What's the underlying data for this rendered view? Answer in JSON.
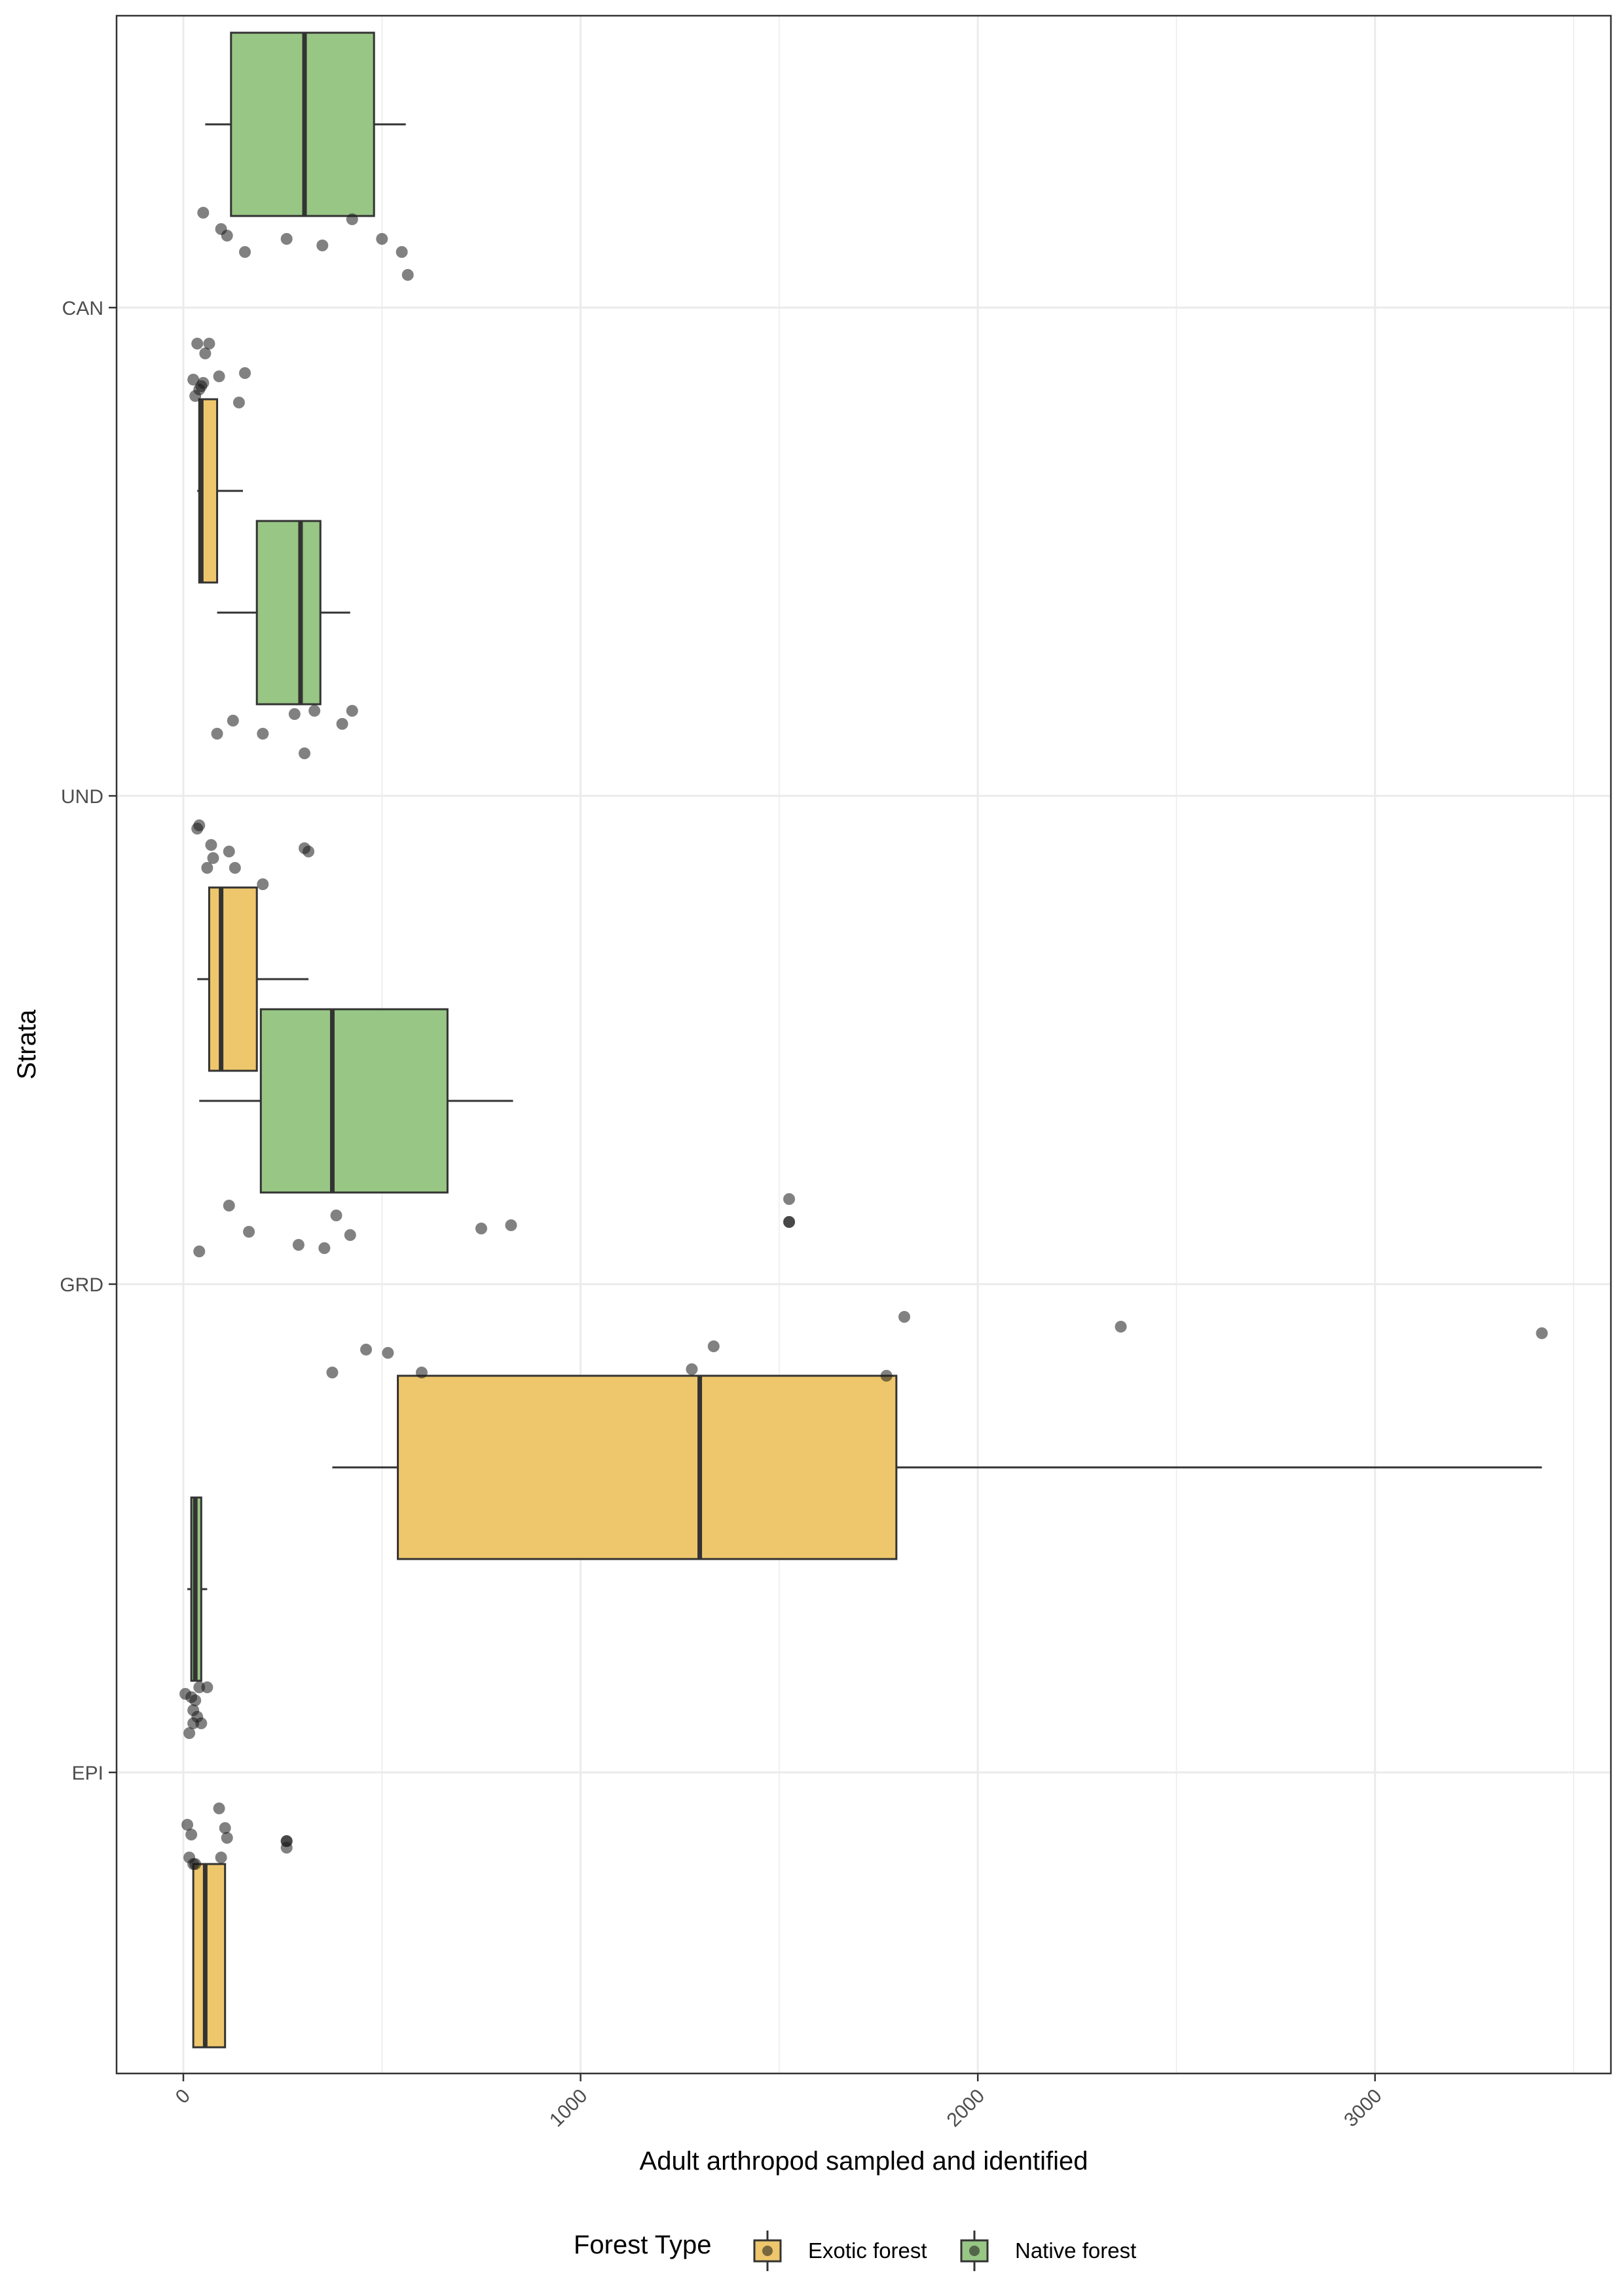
{
  "chart_data": {
    "type": "boxplot",
    "orientation": "horizontal",
    "xlabel": "Adult arthropod sampled and identified",
    "ylabel": "Strata",
    "xlim": [
      -170,
      3570
    ],
    "x_ticks": [
      0,
      1000,
      2000,
      3000
    ],
    "x_tick_labels": [
      "0",
      "1000",
      "2000",
      "3000"
    ],
    "x_tick_label_rotation": -45,
    "categories": [
      "CAN",
      "UND",
      "GRD",
      "EPI"
    ],
    "grid": true,
    "legend": {
      "title": "Forest Type",
      "position": "bottom",
      "entries": [
        "Exotic forest",
        "Native forest"
      ]
    },
    "colors": {
      "Exotic forest": "#EEC76C",
      "Native forest": "#98C685",
      "outline": "#333333",
      "grid": "#EBEBEB",
      "panel_border": "#333333",
      "points": "#1a1a1a"
    },
    "series": [
      {
        "name": "Native forest",
        "boxes": {
          "CAN": {
            "whisker_low": 55,
            "q1": 120,
            "median": 305,
            "q3": 480,
            "whisker_high": 560
          },
          "UND": {
            "whisker_low": 85,
            "q1": 185,
            "median": 295,
            "q3": 345,
            "whisker_high": 420
          },
          "GRD": {
            "whisker_low": 40,
            "q1": 195,
            "median": 375,
            "q3": 665,
            "whisker_high": 830
          },
          "EPI": {
            "whisker_low": 10,
            "q1": 20,
            "median": 30,
            "q3": 45,
            "whisker_high": 60
          }
        },
        "points": {
          "CAN": [
            [
              50,
              0.29
            ],
            [
              95,
              0.24
            ],
            [
              110,
              0.22
            ],
            [
              155,
              0.17
            ],
            [
              260,
              0.21
            ],
            [
              350,
              0.19
            ],
            [
              425,
              0.27
            ],
            [
              500,
              0.21
            ],
            [
              550,
              0.17
            ],
            [
              565,
              0.1
            ]
          ],
          "UND": [
            [
              85,
              0.19
            ],
            [
              125,
              0.23
            ],
            [
              200,
              0.19
            ],
            [
              280,
              0.25
            ],
            [
              305,
              0.13
            ],
            [
              330,
              0.26
            ],
            [
              400,
              0.22
            ],
            [
              425,
              0.26
            ]
          ],
          "GRD": [
            [
              40,
              0.1
            ],
            [
              115,
              0.24
            ],
            [
              165,
              0.16
            ],
            [
              290,
              0.12
            ],
            [
              355,
              0.11
            ],
            [
              385,
              0.21
            ],
            [
              420,
              0.15
            ],
            [
              750,
              0.17
            ],
            [
              825,
              0.18
            ],
            [
              1525,
              0.26
            ],
            [
              1525,
              0.19
            ],
            [
              1525,
              0.19
            ]
          ],
          "EPI": [
            [
              5,
              0.24
            ],
            [
              15,
              0.12
            ],
            [
              20,
              0.23
            ],
            [
              25,
              0.19
            ],
            [
              25,
              0.15
            ],
            [
              30,
              0.22
            ],
            [
              35,
              0.17
            ],
            [
              40,
              0.26
            ],
            [
              45,
              0.15
            ],
            [
              60,
              0.26
            ]
          ]
        }
      },
      {
        "name": "Exotic forest",
        "boxes": {
          "CAN": {
            "whisker_low": 35,
            "q1": 40,
            "median": 45,
            "q3": 85,
            "whisker_high": 150
          },
          "UND": {
            "whisker_low": 35,
            "q1": 65,
            "median": 95,
            "q3": 185,
            "whisker_high": 315
          },
          "GRD": {
            "whisker_low": 375,
            "q1": 540,
            "median": 1300,
            "q3": 1795,
            "whisker_high": 3420
          },
          "EPI": {
            "whisker_low": 25,
            "q1": 25,
            "median": 55,
            "q3": 105,
            "whisker_high": 105
          }
        },
        "points": {
          "CAN": [
            [
              25,
              -0.22
            ],
            [
              30,
              -0.27
            ],
            [
              35,
              -0.11
            ],
            [
              40,
              -0.25
            ],
            [
              45,
              -0.24
            ],
            [
              50,
              -0.23
            ],
            [
              55,
              -0.14
            ],
            [
              65,
              -0.11
            ],
            [
              90,
              -0.21
            ],
            [
              140,
              -0.29
            ],
            [
              155,
              -0.2
            ]
          ],
          "UND": [
            [
              35,
              -0.1
            ],
            [
              40,
              -0.09
            ],
            [
              60,
              -0.22
            ],
            [
              70,
              -0.15
            ],
            [
              75,
              -0.19
            ],
            [
              115,
              -0.17
            ],
            [
              130,
              -0.22
            ],
            [
              200,
              -0.27
            ],
            [
              305,
              -0.16
            ],
            [
              315,
              -0.17
            ]
          ],
          "GRD": [
            [
              375,
              -0.27
            ],
            [
              460,
              -0.2
            ],
            [
              515,
              -0.21
            ],
            [
              600,
              -0.27
            ],
            [
              1280,
              -0.26
            ],
            [
              1335,
              -0.19
            ],
            [
              1770,
              -0.28
            ],
            [
              1815,
              -0.1
            ],
            [
              2360,
              -0.13
            ],
            [
              3420,
              -0.15
            ]
          ],
          "EPI": [
            [
              10,
              -0.16
            ],
            [
              15,
              -0.26
            ],
            [
              20,
              -0.19
            ],
            [
              25,
              -0.28
            ],
            [
              30,
              -0.28
            ],
            [
              90,
              -0.11
            ],
            [
              95,
              -0.26
            ],
            [
              105,
              -0.17
            ],
            [
              110,
              -0.2
            ],
            [
              260,
              -0.21
            ],
            [
              260,
              -0.21
            ],
            [
              260,
              -0.23
            ]
          ]
        }
      }
    ]
  }
}
